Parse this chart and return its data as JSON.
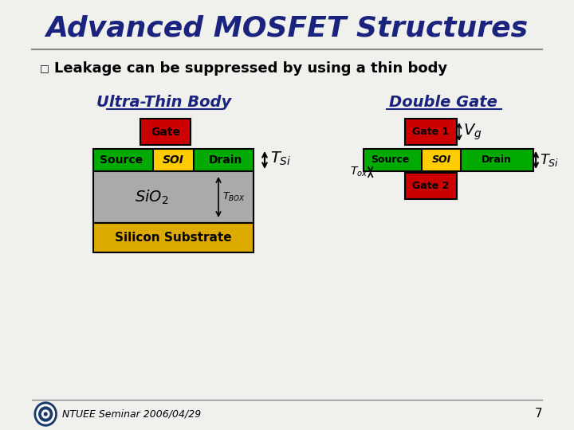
{
  "title": "Advanced MOSFET Structures",
  "title_color": "#1a237e",
  "bg_color": "#f0f0ec",
  "bullet_text": "Leakage can be suppressed by using a thin body",
  "left_label": "Ultra-Thin Body",
  "right_label": "Double Gate",
  "footer": "NTUEE Seminar 2006/04/29",
  "page_num": "7",
  "colors": {
    "red": "#cc0000",
    "green": "#00aa00",
    "yellow": "#ffcc00",
    "gray": "#aaaaaa",
    "gold": "#ddaa00",
    "dark_navy": "#1a237e",
    "black": "#000000",
    "white": "#ffffff"
  }
}
